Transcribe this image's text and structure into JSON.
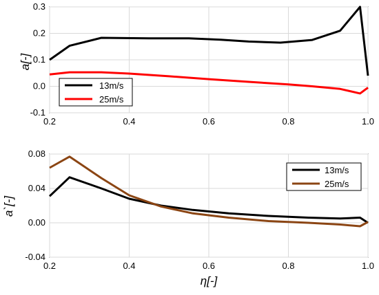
{
  "chart_data": [
    {
      "type": "line",
      "ylabel": "a[-]",
      "xlabel": "",
      "xlim": [
        0.2,
        1.0
      ],
      "ylim": [
        -0.1,
        0.3
      ],
      "xticks": [
        0.2,
        0.4,
        0.6,
        0.8,
        1.0
      ],
      "xtick_labels": [
        "0.2",
        "0.4",
        "0.6",
        "0.8",
        "1.0"
      ],
      "yticks": [
        -0.1,
        0.0,
        0.1,
        0.2,
        0.3
      ],
      "ytick_labels": [
        "-0.1",
        "0.0",
        "0.1",
        "0.2",
        "0.3"
      ],
      "grid": true,
      "legend_position": "bottom-left",
      "series": [
        {
          "name": "13m/s",
          "color": "#000000",
          "x": [
            0.2,
            0.25,
            0.33,
            0.45,
            0.55,
            0.63,
            0.7,
            0.78,
            0.86,
            0.93,
            0.98,
            1.0
          ],
          "y": [
            0.1,
            0.153,
            0.183,
            0.181,
            0.181,
            0.176,
            0.169,
            0.165,
            0.175,
            0.21,
            0.3,
            0.04
          ]
        },
        {
          "name": "25m/s",
          "color": "#ff0000",
          "x": [
            0.2,
            0.25,
            0.33,
            0.4,
            0.5,
            0.6,
            0.7,
            0.8,
            0.86,
            0.93,
            0.98,
            1.0
          ],
          "y": [
            0.045,
            0.053,
            0.053,
            0.048,
            0.038,
            0.027,
            0.017,
            0.007,
            0.0,
            -0.01,
            -0.027,
            -0.005
          ]
        }
      ]
    },
    {
      "type": "line",
      "ylabel": "a`[-]",
      "xlabel": "η[-]",
      "xlim": [
        0.2,
        1.0
      ],
      "ylim": [
        -0.04,
        0.08
      ],
      "xticks": [
        0.2,
        0.4,
        0.6,
        0.8,
        1.0
      ],
      "xtick_labels": [
        "0.2",
        "0.4",
        "0.6",
        "0.8",
        "1.0"
      ],
      "yticks": [
        -0.04,
        0.0,
        0.04,
        0.08
      ],
      "ytick_labels": [
        "-0.04",
        "0.00",
        "0.04",
        "0.08"
      ],
      "grid": true,
      "legend_position": "top-right",
      "series": [
        {
          "name": "13m/s",
          "color": "#000000",
          "x": [
            0.2,
            0.25,
            0.33,
            0.4,
            0.48,
            0.56,
            0.65,
            0.75,
            0.85,
            0.93,
            0.98,
            1.0
          ],
          "y": [
            0.031,
            0.053,
            0.04,
            0.028,
            0.02,
            0.015,
            0.011,
            0.008,
            0.006,
            0.005,
            0.006,
            0.0
          ]
        },
        {
          "name": "25m/s",
          "color": "#8b4513",
          "x": [
            0.2,
            0.25,
            0.33,
            0.4,
            0.48,
            0.56,
            0.65,
            0.75,
            0.85,
            0.93,
            0.98,
            1.0
          ],
          "y": [
            0.064,
            0.077,
            0.052,
            0.032,
            0.019,
            0.011,
            0.006,
            0.002,
            0.0,
            -0.002,
            -0.004,
            0.001
          ]
        }
      ]
    }
  ]
}
